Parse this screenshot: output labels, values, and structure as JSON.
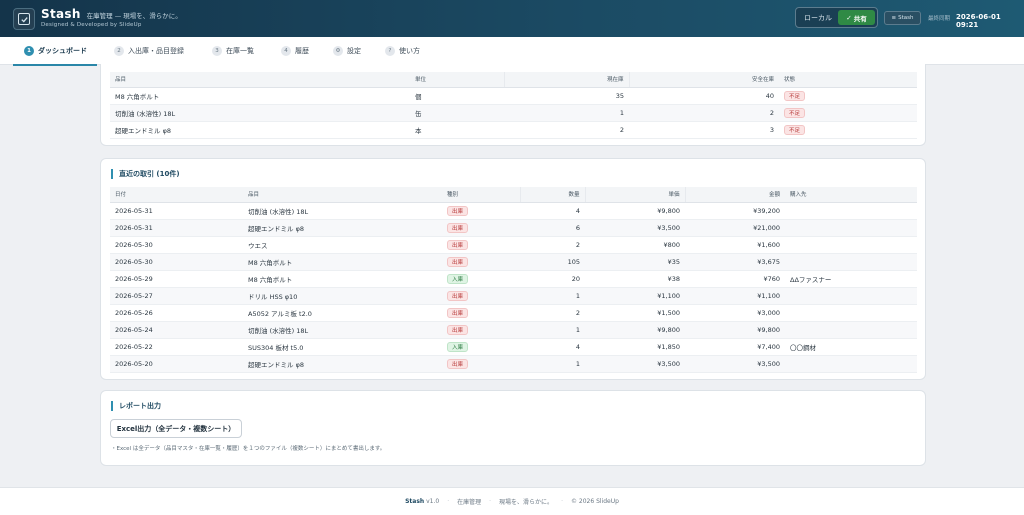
{
  "header": {
    "app_name": "Stash",
    "tagline": "在庫管理 — 現場を、滑らかに。",
    "credit": "Designed & Developed by SlideUp",
    "mode_local": "ローカル",
    "mode_shared": "共有",
    "stash_button": "Stash",
    "sync_label": "最終同期",
    "sync_time": "2026-06-01 09:21"
  },
  "tabs": [
    {
      "num": "1",
      "label": "ダッシュボード"
    },
    {
      "num": "2",
      "label": "入出庫・品目登録"
    },
    {
      "num": "3",
      "label": "在庫一覧"
    },
    {
      "num": "4",
      "label": "履歴"
    },
    {
      "num": "⚙",
      "label": "設定"
    },
    {
      "num": "?",
      "label": "使い方"
    }
  ],
  "low_stock": {
    "columns": [
      "品目",
      "単位",
      "現在庫",
      "安全在庫",
      "状態"
    ],
    "rows": [
      {
        "item": "M8 六角ボルト",
        "unit": "個",
        "current": "35",
        "safety": "40",
        "status": "不足"
      },
      {
        "item": "切削油 (水溶性) 18L",
        "unit": "缶",
        "current": "1",
        "safety": "2",
        "status": "不足"
      },
      {
        "item": "超硬エンドミル φ8",
        "unit": "本",
        "current": "2",
        "safety": "3",
        "status": "不足"
      }
    ]
  },
  "recent": {
    "title": "直近の取引 (10件)",
    "columns": [
      "日付",
      "品目",
      "種別",
      "数量",
      "単価",
      "金額",
      "購入先"
    ],
    "rows": [
      {
        "date": "2026-05-31",
        "item": "切削油 (水溶性) 18L",
        "type": "出庫",
        "kind": "out",
        "qty": "4",
        "price": "¥9,800",
        "amount": "¥39,200",
        "vendor": ""
      },
      {
        "date": "2026-05-31",
        "item": "超硬エンドミル φ8",
        "type": "出庫",
        "kind": "out",
        "qty": "6",
        "price": "¥3,500",
        "amount": "¥21,000",
        "vendor": ""
      },
      {
        "date": "2026-05-30",
        "item": "ウエス",
        "type": "出庫",
        "kind": "out",
        "qty": "2",
        "price": "¥800",
        "amount": "¥1,600",
        "vendor": ""
      },
      {
        "date": "2026-05-30",
        "item": "M8 六角ボルト",
        "type": "出庫",
        "kind": "out",
        "qty": "105",
        "price": "¥35",
        "amount": "¥3,675",
        "vendor": ""
      },
      {
        "date": "2026-05-29",
        "item": "M8 六角ボルト",
        "type": "入庫",
        "kind": "in",
        "qty": "20",
        "price": "¥38",
        "amount": "¥760",
        "vendor": "ΔΔファスナー"
      },
      {
        "date": "2026-05-27",
        "item": "ドリル HSS φ10",
        "type": "出庫",
        "kind": "out",
        "qty": "1",
        "price": "¥1,100",
        "amount": "¥1,100",
        "vendor": ""
      },
      {
        "date": "2026-05-26",
        "item": "A5052 アルミ板 t2.0",
        "type": "出庫",
        "kind": "out",
        "qty": "2",
        "price": "¥1,500",
        "amount": "¥3,000",
        "vendor": ""
      },
      {
        "date": "2026-05-24",
        "item": "切削油 (水溶性) 18L",
        "type": "出庫",
        "kind": "out",
        "qty": "1",
        "price": "¥9,800",
        "amount": "¥9,800",
        "vendor": ""
      },
      {
        "date": "2026-05-22",
        "item": "SUS304 板材 t5.0",
        "type": "入庫",
        "kind": "in",
        "qty": "4",
        "price": "¥1,850",
        "amount": "¥7,400",
        "vendor": "〇〇鋼材"
      },
      {
        "date": "2026-05-20",
        "item": "超硬エンドミル φ8",
        "type": "出庫",
        "kind": "out",
        "qty": "1",
        "price": "¥3,500",
        "amount": "¥3,500",
        "vendor": ""
      }
    ]
  },
  "report": {
    "title": "レポート出力",
    "excel_button": "Excel出力（全データ・複数シート）",
    "note": "・Excel は全データ（品目マスタ・在庫一覧・履歴）を１つのファイル（複数シート）にまとめて書出します。"
  },
  "footer": {
    "brand": "Stash",
    "version": "v1.0",
    "category": "在庫管理",
    "slogan": "現場を、滑らかに。",
    "copyright": "© 2026 SlideUp"
  }
}
